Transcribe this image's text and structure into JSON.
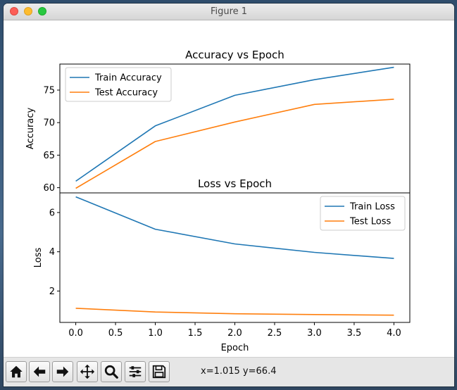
{
  "window": {
    "title": "Figure 1"
  },
  "colors": {
    "series1": "#1f77b4",
    "series2": "#ff7f0e"
  },
  "chart_data": [
    {
      "type": "line",
      "title": "Accuracy vs Epoch",
      "xlabel": "",
      "ylabel": "Accuracy",
      "x": [
        0,
        1,
        2,
        3,
        4
      ],
      "xlim": [
        -0.2,
        4.2
      ],
      "ylim": [
        59.2,
        79.0
      ],
      "yticks": [
        60,
        65,
        70,
        75
      ],
      "yticklabels": [
        "60",
        "65",
        "70",
        "75"
      ],
      "legend": "upper-left",
      "grid": false,
      "series": [
        {
          "name": "Train Accuracy",
          "values": [
            61.0,
            69.5,
            74.2,
            76.6,
            78.5
          ]
        },
        {
          "name": "Test Accuracy",
          "values": [
            59.9,
            67.1,
            70.1,
            72.8,
            73.6
          ]
        }
      ]
    },
    {
      "type": "line",
      "title": "Loss vs Epoch",
      "xlabel": "Epoch",
      "ylabel": "Loss",
      "x": [
        0,
        1,
        2,
        3,
        4
      ],
      "xlim": [
        -0.2,
        4.2
      ],
      "ylim": [
        0.4,
        7.0
      ],
      "xticks": [
        0,
        0.5,
        1.0,
        1.5,
        2.0,
        2.5,
        3.0,
        3.5,
        4.0
      ],
      "xticklabels": [
        "0.0",
        "0.5",
        "1.0",
        "1.5",
        "2.0",
        "2.5",
        "3.0",
        "3.5",
        "4.0"
      ],
      "yticks": [
        2,
        4,
        6
      ],
      "yticklabels": [
        "2",
        "4",
        "6"
      ],
      "legend": "upper-right",
      "grid": false,
      "series": [
        {
          "name": "Train Loss",
          "values": [
            6.8,
            5.15,
            4.4,
            3.97,
            3.66
          ]
        },
        {
          "name": "Test Loss",
          "values": [
            1.12,
            0.93,
            0.84,
            0.8,
            0.77
          ]
        }
      ]
    }
  ],
  "toolbar": {
    "buttons": [
      {
        "name": "home-icon"
      },
      {
        "name": "back-arrow-icon"
      },
      {
        "name": "forward-arrow-icon"
      },
      {
        "name": "pan-icon"
      },
      {
        "name": "zoom-icon"
      },
      {
        "name": "configure-subplots-icon"
      },
      {
        "name": "save-icon"
      }
    ],
    "coords": "x=1.015 y=66.4"
  }
}
